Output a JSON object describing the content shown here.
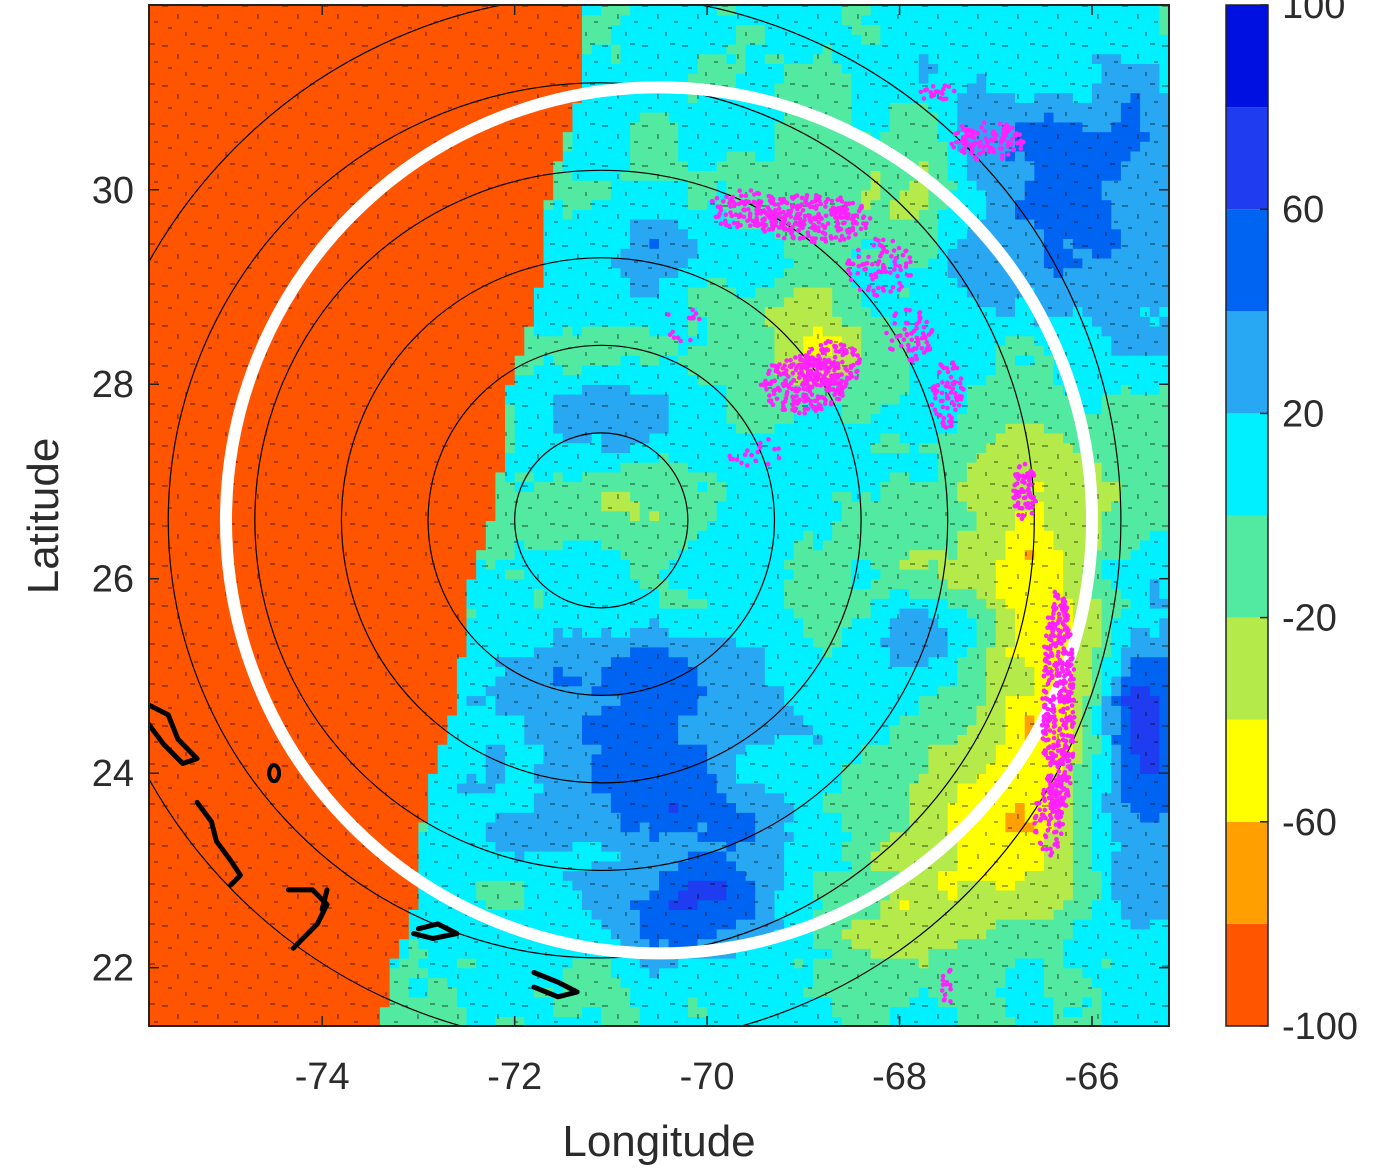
{
  "chart_data": {
    "type": "heatmap",
    "title": "",
    "xlabel": "Longitude",
    "ylabel": "Latitude",
    "xlim": [
      -75.8,
      -65.2
    ],
    "ylim": [
      21.4,
      31.9
    ],
    "x_ticks": [
      -74,
      -72,
      -70,
      -68,
      -66
    ],
    "x_tick_labels": [
      "-74",
      "-72",
      "-70",
      "-68",
      "-66"
    ],
    "y_ticks": [
      22,
      24,
      26,
      28,
      30
    ],
    "y_tick_labels": [
      "22",
      "24",
      "26",
      "28",
      "30"
    ],
    "colorbar": {
      "range": [
        -100,
        100
      ],
      "tick_values": [
        -100,
        -60,
        -20,
        20,
        60,
        100
      ],
      "tick_labels": [
        "-100",
        "-60",
        "-20",
        "20",
        "60",
        "100"
      ],
      "levels": [
        -100,
        -80,
        -60,
        -40,
        -20,
        0,
        20,
        40,
        60,
        80,
        100
      ],
      "colors": [
        "#ff5500",
        "#ffa000",
        "#ffff00",
        "#b4ea4a",
        "#52eaa0",
        "#00f0ff",
        "#28a8f2",
        "#0064f2",
        "#1f3cf0",
        "#0010e0"
      ]
    },
    "range_rings": {
      "center": [
        -71.1,
        26.6
      ],
      "radii_deg": [
        0.9,
        1.8,
        2.7,
        3.6,
        4.5,
        5.4
      ]
    },
    "highlight_circle": {
      "center": [
        -70.5,
        26.6
      ],
      "radius_deg": 4.5,
      "color": "#ffffff"
    },
    "lightning_color": "#ff22ff",
    "coastline_color": "#000000",
    "no_data_boundary_lon": -71.8
  }
}
